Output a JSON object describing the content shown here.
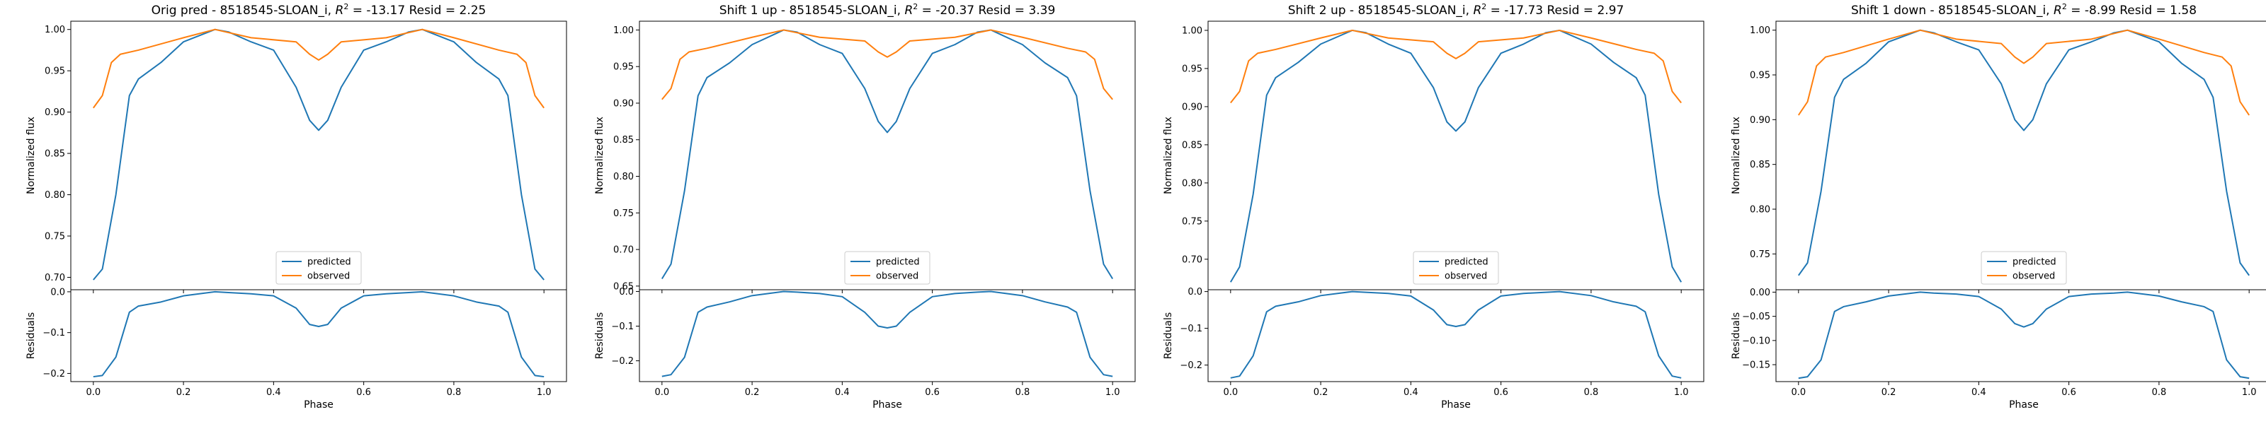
{
  "colors": {
    "predicted": "#1f77b4",
    "observed": "#ff7f0e",
    "frame": "#000000"
  },
  "chart_data": [
    {
      "type": "line",
      "title": "Orig pred - 8518545-SLOAN_i, $R^2$ = -13.17 Resid = 2.25",
      "title_parts": {
        "prefix": "Orig pred - 8518545-SLOAN_i, ",
        "r": "R",
        "sup": "2",
        "suffix": " = -13.17 Resid = 2.25"
      },
      "xlabel": "Phase",
      "ylabel_top": "Normalized flux",
      "ylabel_bottom": "Residuals",
      "xlim": [
        -0.05,
        1.05
      ],
      "xticks": [
        0.0,
        0.2,
        0.4,
        0.6,
        0.8,
        1.0
      ],
      "xtick_labels": [
        "0.0",
        "0.2",
        "0.4",
        "0.6",
        "0.8",
        "1.0"
      ],
      "top_ylim": [
        0.685,
        1.01
      ],
      "top_yticks": [
        0.7,
        0.75,
        0.8,
        0.85,
        0.9,
        0.95,
        1.0
      ],
      "top_ytick_labels": [
        "0.70",
        "0.75",
        "0.80",
        "0.85",
        "0.90",
        "0.95",
        "1.00"
      ],
      "bottom_ylim": [
        -0.22,
        0.005
      ],
      "bottom_yticks": [
        -0.2,
        -0.1,
        0.0
      ],
      "bottom_ytick_labels": [
        "−0.2",
        "−0.1",
        "0.0"
      ],
      "legend": {
        "placement": "lower center",
        "entries": [
          "predicted",
          "observed"
        ]
      },
      "grid": false,
      "series": [
        {
          "name": "predicted",
          "x": [
            0.0,
            0.02,
            0.05,
            0.08,
            0.1,
            0.15,
            0.2,
            0.27,
            0.3,
            0.35,
            0.4,
            0.45,
            0.48,
            0.5,
            0.52,
            0.55,
            0.6,
            0.65,
            0.7,
            0.73,
            0.8,
            0.85,
            0.9,
            0.92,
            0.95,
            0.98,
            1.0
          ],
          "y": [
            0.697,
            0.71,
            0.8,
            0.92,
            0.94,
            0.96,
            0.985,
            1.0,
            0.997,
            0.985,
            0.975,
            0.93,
            0.89,
            0.878,
            0.89,
            0.93,
            0.975,
            0.985,
            0.997,
            1.0,
            0.985,
            0.96,
            0.94,
            0.92,
            0.8,
            0.71,
            0.697
          ]
        },
        {
          "name": "observed",
          "x": [
            0.0,
            0.02,
            0.04,
            0.06,
            0.1,
            0.2,
            0.27,
            0.35,
            0.45,
            0.48,
            0.5,
            0.52,
            0.55,
            0.65,
            0.73,
            0.8,
            0.9,
            0.94,
            0.96,
            0.98,
            1.0
          ],
          "y": [
            0.905,
            0.92,
            0.96,
            0.97,
            0.975,
            0.99,
            1.0,
            0.99,
            0.985,
            0.97,
            0.963,
            0.97,
            0.985,
            0.99,
            1.0,
            0.99,
            0.975,
            0.97,
            0.96,
            0.92,
            0.905
          ]
        },
        {
          "name": "residuals",
          "x": [
            0.0,
            0.02,
            0.05,
            0.08,
            0.1,
            0.15,
            0.2,
            0.27,
            0.3,
            0.35,
            0.4,
            0.45,
            0.48,
            0.5,
            0.52,
            0.55,
            0.6,
            0.65,
            0.7,
            0.73,
            0.8,
            0.85,
            0.9,
            0.92,
            0.95,
            0.98,
            1.0
          ],
          "y": [
            -0.208,
            -0.205,
            -0.16,
            -0.05,
            -0.035,
            -0.025,
            -0.01,
            0.0,
            -0.002,
            -0.005,
            -0.01,
            -0.04,
            -0.08,
            -0.085,
            -0.08,
            -0.04,
            -0.01,
            -0.005,
            -0.002,
            0.0,
            -0.01,
            -0.025,
            -0.035,
            -0.05,
            -0.16,
            -0.205,
            -0.208
          ]
        }
      ]
    },
    {
      "type": "line",
      "title": "Shift 1 up - 8518545-SLOAN_i, $R^2$ = -20.37 Resid = 3.39",
      "title_parts": {
        "prefix": "Shift 1 up - 8518545-SLOAN_i, ",
        "r": "R",
        "sup": "2",
        "suffix": " = -20.37 Resid = 3.39"
      },
      "xlabel": "Phase",
      "ylabel_top": "Normalized flux",
      "ylabel_bottom": "Residuals",
      "xlim": [
        -0.05,
        1.05
      ],
      "xticks": [
        0.0,
        0.2,
        0.4,
        0.6,
        0.8,
        1.0
      ],
      "xtick_labels": [
        "0.0",
        "0.2",
        "0.4",
        "0.6",
        "0.8",
        "1.0"
      ],
      "top_ylim": [
        0.645,
        1.012
      ],
      "top_yticks": [
        0.65,
        0.7,
        0.75,
        0.8,
        0.85,
        0.9,
        0.95,
        1.0
      ],
      "top_ytick_labels": [
        "0.65",
        "0.70",
        "0.75",
        "0.80",
        "0.85",
        "0.90",
        "0.95",
        "1.00"
      ],
      "bottom_ylim": [
        -0.26,
        0.005
      ],
      "bottom_yticks": [
        -0.2,
        -0.1,
        0.0
      ],
      "bottom_ytick_labels": [
        "−0.2",
        "−0.1",
        "0.0"
      ],
      "legend": {
        "placement": "lower center",
        "entries": [
          "predicted",
          "observed"
        ]
      },
      "grid": false,
      "series": [
        {
          "name": "predicted",
          "x": [
            0.0,
            0.02,
            0.05,
            0.08,
            0.1,
            0.15,
            0.2,
            0.27,
            0.3,
            0.35,
            0.4,
            0.45,
            0.48,
            0.5,
            0.52,
            0.55,
            0.6,
            0.65,
            0.7,
            0.73,
            0.8,
            0.85,
            0.9,
            0.92,
            0.95,
            0.98,
            1.0
          ],
          "y": [
            0.66,
            0.68,
            0.78,
            0.91,
            0.935,
            0.955,
            0.98,
            1.0,
            0.997,
            0.98,
            0.968,
            0.92,
            0.875,
            0.86,
            0.875,
            0.92,
            0.968,
            0.98,
            0.997,
            1.0,
            0.98,
            0.955,
            0.935,
            0.91,
            0.78,
            0.68,
            0.66
          ]
        },
        {
          "name": "observed",
          "x": [
            0.0,
            0.02,
            0.04,
            0.06,
            0.1,
            0.2,
            0.27,
            0.35,
            0.45,
            0.48,
            0.5,
            0.52,
            0.55,
            0.65,
            0.73,
            0.8,
            0.9,
            0.94,
            0.96,
            0.98,
            1.0
          ],
          "y": [
            0.905,
            0.92,
            0.96,
            0.97,
            0.975,
            0.99,
            1.0,
            0.99,
            0.985,
            0.97,
            0.963,
            0.97,
            0.985,
            0.99,
            1.0,
            0.99,
            0.975,
            0.97,
            0.96,
            0.92,
            0.905
          ]
        },
        {
          "name": "residuals",
          "x": [
            0.0,
            0.02,
            0.05,
            0.08,
            0.1,
            0.15,
            0.2,
            0.27,
            0.3,
            0.35,
            0.4,
            0.45,
            0.48,
            0.5,
            0.52,
            0.55,
            0.6,
            0.65,
            0.7,
            0.73,
            0.8,
            0.85,
            0.9,
            0.92,
            0.95,
            0.98,
            1.0
          ],
          "y": [
            -0.245,
            -0.24,
            -0.19,
            -0.06,
            -0.045,
            -0.03,
            -0.012,
            0.0,
            -0.002,
            -0.006,
            -0.015,
            -0.06,
            -0.1,
            -0.105,
            -0.1,
            -0.06,
            -0.015,
            -0.006,
            -0.002,
            0.0,
            -0.012,
            -0.03,
            -0.045,
            -0.06,
            -0.19,
            -0.24,
            -0.245
          ]
        }
      ]
    },
    {
      "type": "line",
      "title": "Shift 2 up - 8518545-SLOAN_i, $R^2$ = -17.73 Resid = 2.97",
      "title_parts": {
        "prefix": "Shift 2 up - 8518545-SLOAN_i, ",
        "r": "R",
        "sup": "2",
        "suffix": " = -17.73 Resid = 2.97"
      },
      "xlabel": "Phase",
      "ylabel_top": "Normalized flux",
      "ylabel_bottom": "Residuals",
      "xlim": [
        -0.05,
        1.05
      ],
      "xticks": [
        0.0,
        0.2,
        0.4,
        0.6,
        0.8,
        1.0
      ],
      "xtick_labels": [
        "0.0",
        "0.2",
        "0.4",
        "0.6",
        "0.8",
        "1.0"
      ],
      "top_ylim": [
        0.66,
        1.012
      ],
      "top_yticks": [
        0.7,
        0.75,
        0.8,
        0.85,
        0.9,
        0.95,
        1.0
      ],
      "top_ytick_labels": [
        "0.70",
        "0.75",
        "0.80",
        "0.85",
        "0.90",
        "0.95",
        "1.00"
      ],
      "bottom_ylim": [
        -0.245,
        0.005
      ],
      "bottom_yticks": [
        -0.2,
        -0.1,
        0.0
      ],
      "bottom_ytick_labels": [
        "−0.2",
        "−0.1",
        "0.0"
      ],
      "legend": {
        "placement": "lower center",
        "entries": [
          "predicted",
          "observed"
        ]
      },
      "grid": false,
      "series": [
        {
          "name": "predicted",
          "x": [
            0.0,
            0.02,
            0.05,
            0.08,
            0.1,
            0.15,
            0.2,
            0.27,
            0.3,
            0.35,
            0.4,
            0.45,
            0.48,
            0.5,
            0.52,
            0.55,
            0.6,
            0.65,
            0.7,
            0.73,
            0.8,
            0.85,
            0.9,
            0.92,
            0.95,
            0.98,
            1.0
          ],
          "y": [
            0.67,
            0.69,
            0.785,
            0.915,
            0.938,
            0.958,
            0.982,
            1.0,
            0.997,
            0.982,
            0.97,
            0.925,
            0.88,
            0.868,
            0.88,
            0.925,
            0.97,
            0.982,
            0.997,
            1.0,
            0.982,
            0.958,
            0.938,
            0.915,
            0.785,
            0.69,
            0.67
          ]
        },
        {
          "name": "observed",
          "x": [
            0.0,
            0.02,
            0.04,
            0.06,
            0.1,
            0.2,
            0.27,
            0.35,
            0.45,
            0.48,
            0.5,
            0.52,
            0.55,
            0.65,
            0.73,
            0.8,
            0.9,
            0.94,
            0.96,
            0.98,
            1.0
          ],
          "y": [
            0.905,
            0.92,
            0.96,
            0.97,
            0.975,
            0.99,
            1.0,
            0.99,
            0.985,
            0.97,
            0.963,
            0.97,
            0.985,
            0.99,
            1.0,
            0.99,
            0.975,
            0.97,
            0.96,
            0.92,
            0.905
          ]
        },
        {
          "name": "residuals",
          "x": [
            0.0,
            0.02,
            0.05,
            0.08,
            0.1,
            0.15,
            0.2,
            0.27,
            0.3,
            0.35,
            0.4,
            0.45,
            0.48,
            0.5,
            0.52,
            0.55,
            0.6,
            0.65,
            0.7,
            0.73,
            0.8,
            0.85,
            0.9,
            0.92,
            0.95,
            0.98,
            1.0
          ],
          "y": [
            -0.235,
            -0.23,
            -0.175,
            -0.055,
            -0.04,
            -0.028,
            -0.011,
            0.0,
            -0.002,
            -0.005,
            -0.012,
            -0.05,
            -0.09,
            -0.095,
            -0.09,
            -0.05,
            -0.012,
            -0.005,
            -0.002,
            0.0,
            -0.011,
            -0.028,
            -0.04,
            -0.055,
            -0.175,
            -0.23,
            -0.235
          ]
        }
      ]
    },
    {
      "type": "line",
      "title": "Shift 1 down - 8518545-SLOAN_i, $R^2$ = -8.99 Resid = 1.58",
      "title_parts": {
        "prefix": "Shift 1 down - 8518545-SLOAN_i, ",
        "r": "R",
        "sup": "2",
        "suffix": " = -8.99 Resid = 1.58"
      },
      "xlabel": "Phase",
      "ylabel_top": "Normalized flux",
      "ylabel_bottom": "Residuals",
      "xlim": [
        -0.05,
        1.05
      ],
      "xticks": [
        0.0,
        0.2,
        0.4,
        0.6,
        0.8,
        1.0
      ],
      "xtick_labels": [
        "0.0",
        "0.2",
        "0.4",
        "0.6",
        "0.8",
        "1.0"
      ],
      "top_ylim": [
        0.71,
        1.01
      ],
      "top_yticks": [
        0.75,
        0.8,
        0.85,
        0.9,
        0.95,
        1.0
      ],
      "top_ytick_labels": [
        "0.75",
        "0.80",
        "0.85",
        "0.90",
        "0.95",
        "1.00"
      ],
      "bottom_ylim": [
        -0.185,
        0.005
      ],
      "bottom_yticks": [
        -0.15,
        -0.1,
        -0.05,
        0.0
      ],
      "bottom_ytick_labels": [
        "−0.15",
        "−0.10",
        "−0.05",
        "0.00"
      ],
      "legend": {
        "placement": "lower center",
        "entries": [
          "predicted",
          "observed"
        ]
      },
      "grid": false,
      "series": [
        {
          "name": "predicted",
          "x": [
            0.0,
            0.02,
            0.05,
            0.08,
            0.1,
            0.15,
            0.2,
            0.27,
            0.3,
            0.35,
            0.4,
            0.45,
            0.48,
            0.5,
            0.52,
            0.55,
            0.6,
            0.65,
            0.7,
            0.73,
            0.8,
            0.85,
            0.9,
            0.92,
            0.95,
            0.98,
            1.0
          ],
          "y": [
            0.726,
            0.74,
            0.82,
            0.925,
            0.945,
            0.963,
            0.987,
            1.0,
            0.997,
            0.987,
            0.978,
            0.94,
            0.9,
            0.888,
            0.9,
            0.94,
            0.978,
            0.987,
            0.997,
            1.0,
            0.987,
            0.963,
            0.945,
            0.925,
            0.82,
            0.74,
            0.726
          ]
        },
        {
          "name": "observed",
          "x": [
            0.0,
            0.02,
            0.04,
            0.06,
            0.1,
            0.2,
            0.27,
            0.35,
            0.45,
            0.48,
            0.5,
            0.52,
            0.55,
            0.65,
            0.73,
            0.8,
            0.9,
            0.94,
            0.96,
            0.98,
            1.0
          ],
          "y": [
            0.905,
            0.92,
            0.96,
            0.97,
            0.975,
            0.99,
            1.0,
            0.99,
            0.985,
            0.97,
            0.963,
            0.97,
            0.985,
            0.99,
            1.0,
            0.99,
            0.975,
            0.97,
            0.96,
            0.92,
            0.905
          ]
        },
        {
          "name": "residuals",
          "x": [
            0.0,
            0.02,
            0.05,
            0.08,
            0.1,
            0.15,
            0.2,
            0.27,
            0.3,
            0.35,
            0.4,
            0.45,
            0.48,
            0.5,
            0.52,
            0.55,
            0.6,
            0.65,
            0.7,
            0.73,
            0.8,
            0.85,
            0.9,
            0.92,
            0.95,
            0.98,
            1.0
          ],
          "y": [
            -0.178,
            -0.175,
            -0.14,
            -0.04,
            -0.03,
            -0.02,
            -0.008,
            0.0,
            -0.002,
            -0.004,
            -0.009,
            -0.035,
            -0.065,
            -0.072,
            -0.065,
            -0.035,
            -0.009,
            -0.004,
            -0.002,
            0.0,
            -0.008,
            -0.02,
            -0.03,
            -0.04,
            -0.14,
            -0.175,
            -0.178
          ]
        }
      ]
    }
  ]
}
